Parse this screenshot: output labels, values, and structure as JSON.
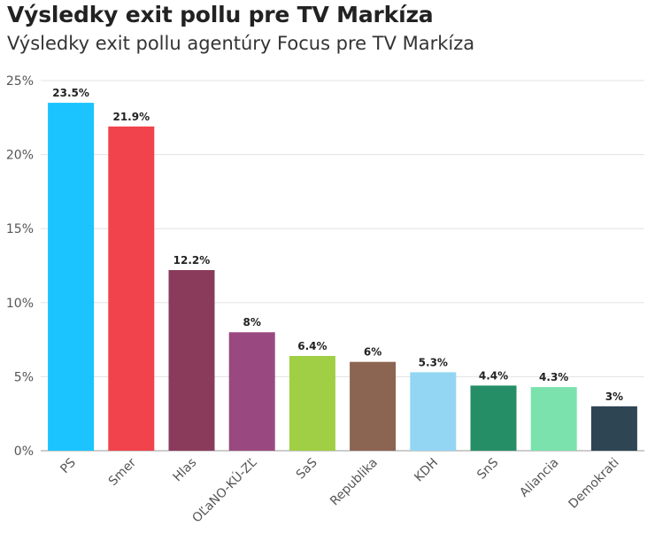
{
  "header": {
    "title": "Výsledky exit pollu pre TV Markíza",
    "subtitle": "Výsledky exit pollu agentúry Focus pre TV Markíza"
  },
  "chart_data": {
    "type": "bar",
    "title": "Výsledky exit pollu pre TV Markíza",
    "subtitle": "Výsledky exit pollu agentúry Focus pre TV Markíza",
    "xlabel": "",
    "ylabel": "",
    "ylim": [
      0,
      25
    ],
    "yticks": [
      0,
      5,
      10,
      15,
      20,
      25
    ],
    "ytick_labels": [
      "0%",
      "5%",
      "10%",
      "15%",
      "20%",
      "25%"
    ],
    "grid": true,
    "categories": [
      "PS",
      "Smer",
      "Hlas",
      "OĽaNO-KÚ-ZĽ",
      "SaS",
      "Republika",
      "KDH",
      "SnS",
      "Aliancia",
      "Demokrati"
    ],
    "values": [
      23.5,
      21.9,
      12.2,
      8,
      6.4,
      6,
      5.3,
      4.4,
      4.3,
      3
    ],
    "value_labels": [
      "23.5%",
      "21.9%",
      "12.2%",
      "8%",
      "6.4%",
      "6%",
      "5.3%",
      "4.4%",
      "4.3%",
      "3%"
    ],
    "colors": [
      "#1bc3ff",
      "#f0434c",
      "#8a3b5c",
      "#9a4880",
      "#a0ce44",
      "#8b6452",
      "#93d6f3",
      "#258e66",
      "#7be2ae",
      "#2e4553"
    ]
  }
}
